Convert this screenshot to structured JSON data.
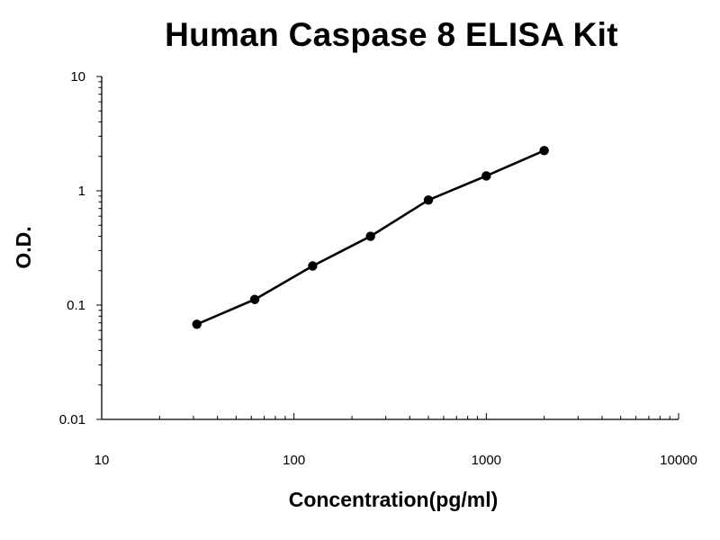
{
  "chart_data": {
    "type": "line",
    "title": "Human Caspase 8 ELISA Kit",
    "xlabel": "Concentration(pg/ml)",
    "ylabel": "O.D.",
    "x_scale": "log",
    "y_scale": "log",
    "xlim": [
      10,
      10000
    ],
    "ylim": [
      0.01,
      10
    ],
    "x_tick_labels": [
      "10",
      "100",
      "1000",
      "10000"
    ],
    "y_tick_labels": [
      "0.01",
      "0.1",
      "1",
      "10"
    ],
    "grid": false,
    "legend": "none",
    "series": [
      {
        "x": [
          31.25,
          62.5,
          125,
          250,
          500,
          1000,
          2000
        ],
        "y": [
          0.068,
          0.112,
          0.22,
          0.4,
          0.83,
          1.35,
          2.25
        ],
        "color": "#000000",
        "marker": "circle"
      }
    ]
  }
}
